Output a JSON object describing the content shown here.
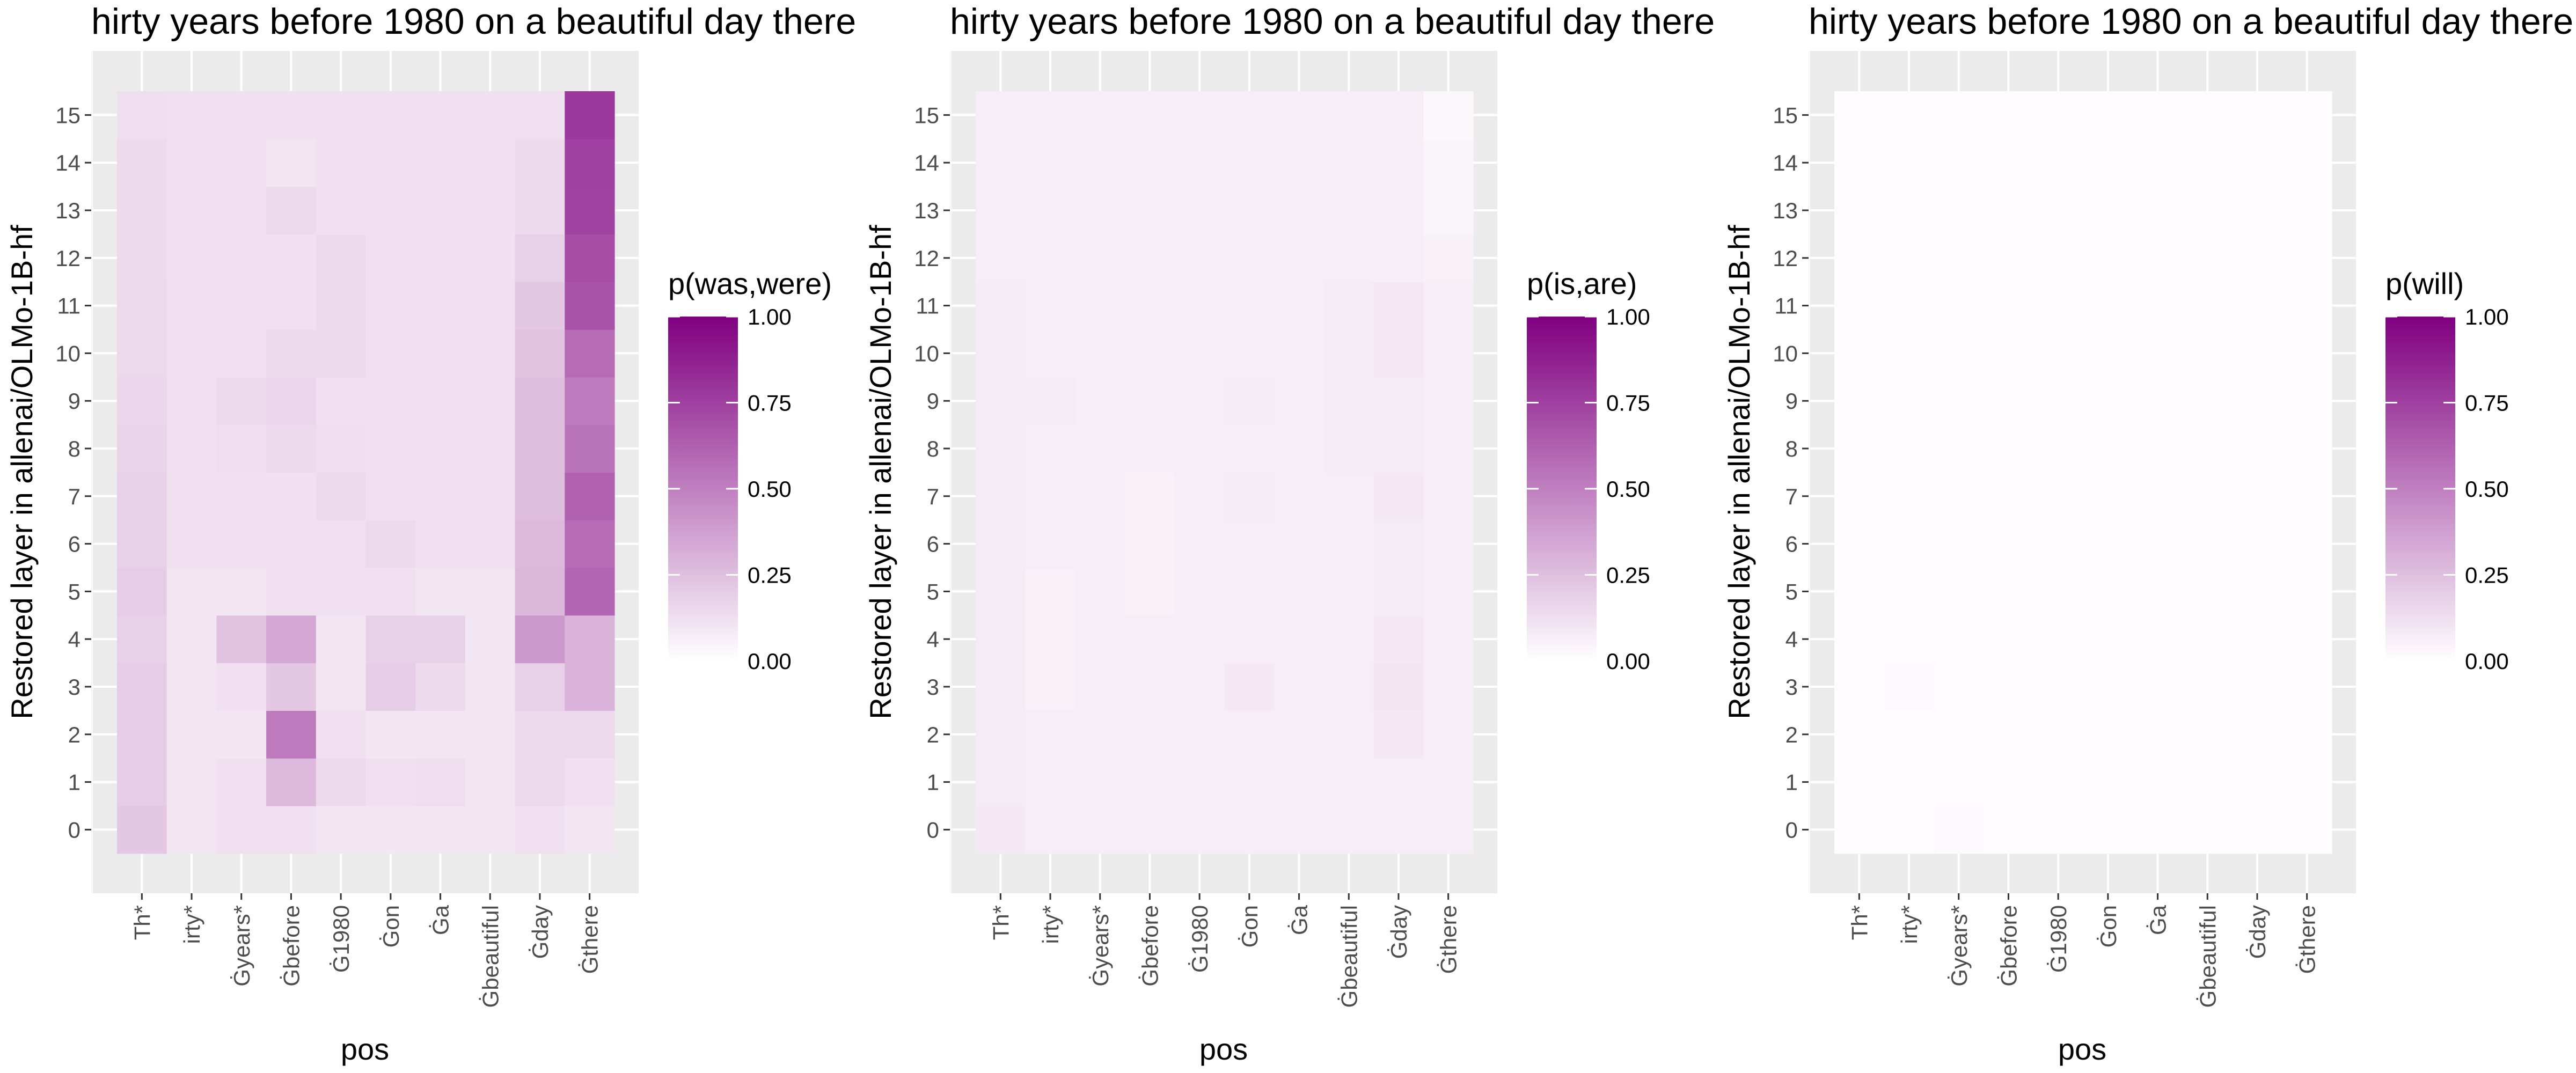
{
  "chart_data": [
    {
      "type": "heatmap",
      "title": "hirty years before 1980 on a beautiful day there",
      "xlabel": "pos",
      "ylabel": "Restored layer in allenai/OLMo-1B-hf",
      "x": [
        "Th*",
        "irty*",
        "Ġyears*",
        "Ġbefore",
        "Ġ1980",
        "Ġon",
        "Ġa",
        "Ġbeautiful",
        "Ġday",
        "Ġthere"
      ],
      "y": [
        0,
        1,
        2,
        3,
        4,
        5,
        6,
        7,
        8,
        9,
        10,
        11,
        12,
        13,
        14,
        15
      ],
      "legend": {
        "title": "p(was,were)",
        "ticks": [
          "0.00",
          "0.25",
          "0.50",
          "0.75",
          "1.00"
        ]
      },
      "grid": true,
      "colors": {
        "low": "#ffffff",
        "high": "#800080"
      },
      "values": [
        [
          0.22,
          0.1,
          0.12,
          0.12,
          0.1,
          0.1,
          0.1,
          0.1,
          0.12,
          0.1
        ],
        [
          0.2,
          0.1,
          0.12,
          0.27,
          0.14,
          0.12,
          0.13,
          0.1,
          0.15,
          0.12
        ],
        [
          0.2,
          0.1,
          0.1,
          0.52,
          0.12,
          0.1,
          0.1,
          0.1,
          0.15,
          0.15
        ],
        [
          0.2,
          0.1,
          0.12,
          0.22,
          0.1,
          0.2,
          0.14,
          0.1,
          0.18,
          0.3
        ],
        [
          0.18,
          0.1,
          0.24,
          0.34,
          0.1,
          0.18,
          0.18,
          0.1,
          0.4,
          0.3
        ],
        [
          0.2,
          0.1,
          0.1,
          0.12,
          0.12,
          0.12,
          0.1,
          0.1,
          0.28,
          0.6
        ],
        [
          0.18,
          0.12,
          0.12,
          0.12,
          0.12,
          0.14,
          0.12,
          0.12,
          0.27,
          0.58
        ],
        [
          0.18,
          0.12,
          0.12,
          0.12,
          0.14,
          0.12,
          0.12,
          0.12,
          0.26,
          0.62
        ],
        [
          0.17,
          0.12,
          0.13,
          0.15,
          0.13,
          0.12,
          0.12,
          0.12,
          0.25,
          0.55
        ],
        [
          0.16,
          0.12,
          0.14,
          0.16,
          0.12,
          0.12,
          0.12,
          0.12,
          0.25,
          0.52
        ],
        [
          0.15,
          0.12,
          0.12,
          0.14,
          0.14,
          0.12,
          0.12,
          0.12,
          0.24,
          0.58
        ],
        [
          0.15,
          0.12,
          0.12,
          0.12,
          0.14,
          0.12,
          0.12,
          0.12,
          0.22,
          0.68
        ],
        [
          0.14,
          0.12,
          0.12,
          0.12,
          0.14,
          0.12,
          0.12,
          0.12,
          0.18,
          0.7
        ],
        [
          0.14,
          0.12,
          0.12,
          0.14,
          0.12,
          0.12,
          0.12,
          0.12,
          0.14,
          0.74
        ],
        [
          0.14,
          0.12,
          0.12,
          0.1,
          0.12,
          0.12,
          0.12,
          0.12,
          0.14,
          0.75
        ],
        [
          0.13,
          0.12,
          0.12,
          0.12,
          0.12,
          0.12,
          0.12,
          0.12,
          0.12,
          0.78
        ]
      ]
    },
    {
      "type": "heatmap",
      "title": "hirty years before 1980 on a beautiful day there",
      "xlabel": "pos",
      "ylabel": "Restored layer in allenai/OLMo-1B-hf",
      "x": [
        "Th*",
        "irty*",
        "Ġyears*",
        "Ġbefore",
        "Ġ1980",
        "Ġon",
        "Ġa",
        "Ġbeautiful",
        "Ġday",
        "Ġthere"
      ],
      "y": [
        0,
        1,
        2,
        3,
        4,
        5,
        6,
        7,
        8,
        9,
        10,
        11,
        12,
        13,
        14,
        15
      ],
      "legend": {
        "title": "p(is,are)",
        "ticks": [
          "0.00",
          "0.25",
          "0.50",
          "0.75",
          "1.00"
        ]
      },
      "grid": true,
      "colors": {
        "low": "#ffffff",
        "high": "#800080"
      },
      "values": [
        [
          0.09,
          0.07,
          0.07,
          0.07,
          0.07,
          0.07,
          0.07,
          0.07,
          0.07,
          0.07
        ],
        [
          0.08,
          0.07,
          0.07,
          0.07,
          0.07,
          0.07,
          0.07,
          0.07,
          0.07,
          0.07
        ],
        [
          0.08,
          0.07,
          0.07,
          0.07,
          0.07,
          0.07,
          0.07,
          0.07,
          0.09,
          0.07
        ],
        [
          0.08,
          0.06,
          0.07,
          0.07,
          0.07,
          0.09,
          0.07,
          0.07,
          0.1,
          0.07
        ],
        [
          0.08,
          0.06,
          0.07,
          0.07,
          0.07,
          0.07,
          0.07,
          0.07,
          0.09,
          0.07
        ],
        [
          0.08,
          0.06,
          0.07,
          0.06,
          0.07,
          0.07,
          0.07,
          0.07,
          0.08,
          0.07
        ],
        [
          0.08,
          0.07,
          0.07,
          0.06,
          0.07,
          0.07,
          0.07,
          0.07,
          0.08,
          0.07
        ],
        [
          0.08,
          0.07,
          0.07,
          0.06,
          0.07,
          0.08,
          0.07,
          0.07,
          0.09,
          0.07
        ],
        [
          0.08,
          0.07,
          0.07,
          0.07,
          0.07,
          0.07,
          0.07,
          0.08,
          0.08,
          0.07
        ],
        [
          0.08,
          0.08,
          0.07,
          0.07,
          0.07,
          0.08,
          0.07,
          0.08,
          0.08,
          0.07
        ],
        [
          0.08,
          0.07,
          0.07,
          0.07,
          0.07,
          0.07,
          0.07,
          0.08,
          0.09,
          0.07
        ],
        [
          0.08,
          0.07,
          0.07,
          0.07,
          0.07,
          0.07,
          0.07,
          0.08,
          0.09,
          0.07
        ],
        [
          0.07,
          0.07,
          0.07,
          0.07,
          0.07,
          0.07,
          0.07,
          0.07,
          0.07,
          0.06
        ],
        [
          0.07,
          0.07,
          0.07,
          0.07,
          0.07,
          0.07,
          0.07,
          0.07,
          0.07,
          0.04
        ],
        [
          0.07,
          0.07,
          0.07,
          0.07,
          0.07,
          0.07,
          0.07,
          0.07,
          0.07,
          0.04
        ],
        [
          0.07,
          0.07,
          0.07,
          0.07,
          0.07,
          0.07,
          0.07,
          0.07,
          0.07,
          0.03
        ]
      ]
    },
    {
      "type": "heatmap",
      "title": "hirty years before 1980 on a beautiful day there",
      "xlabel": "pos",
      "ylabel": "Restored layer in allenai/OLMo-1B-hf",
      "x": [
        "Th*",
        "irty*",
        "Ġyears*",
        "Ġbefore",
        "Ġ1980",
        "Ġon",
        "Ġa",
        "Ġbeautiful",
        "Ġday",
        "Ġthere"
      ],
      "y": [
        0,
        1,
        2,
        3,
        4,
        5,
        6,
        7,
        8,
        9,
        10,
        11,
        12,
        13,
        14,
        15
      ],
      "legend": {
        "title": "p(will)",
        "ticks": [
          "0.00",
          "0.25",
          "0.50",
          "0.75",
          "1.00"
        ]
      },
      "grid": true,
      "colors": {
        "low": "#ffffff",
        "high": "#800080"
      },
      "values": [
        [
          0.01,
          0.01,
          0.02,
          0.01,
          0.01,
          0.01,
          0.01,
          0.01,
          0.01,
          0.01
        ],
        [
          0.01,
          0.01,
          0.01,
          0.01,
          0.01,
          0.01,
          0.01,
          0.01,
          0.01,
          0.01
        ],
        [
          0.01,
          0.01,
          0.01,
          0.01,
          0.01,
          0.01,
          0.01,
          0.01,
          0.01,
          0.01
        ],
        [
          0.01,
          0.02,
          0.01,
          0.01,
          0.01,
          0.01,
          0.01,
          0.01,
          0.01,
          0.01
        ],
        [
          0.01,
          0.01,
          0.01,
          0.01,
          0.01,
          0.01,
          0.01,
          0.01,
          0.01,
          0.01
        ],
        [
          0.01,
          0.01,
          0.01,
          0.01,
          0.01,
          0.01,
          0.01,
          0.01,
          0.01,
          0.01
        ],
        [
          0.01,
          0.01,
          0.01,
          0.01,
          0.01,
          0.01,
          0.01,
          0.01,
          0.01,
          0.01
        ],
        [
          0.01,
          0.01,
          0.01,
          0.01,
          0.01,
          0.01,
          0.01,
          0.01,
          0.01,
          0.01
        ],
        [
          0.01,
          0.01,
          0.01,
          0.01,
          0.01,
          0.01,
          0.01,
          0.01,
          0.01,
          0.01
        ],
        [
          0.01,
          0.01,
          0.01,
          0.01,
          0.01,
          0.01,
          0.01,
          0.01,
          0.01,
          0.01
        ],
        [
          0.01,
          0.01,
          0.01,
          0.01,
          0.01,
          0.01,
          0.01,
          0.01,
          0.01,
          0.01
        ],
        [
          0.01,
          0.01,
          0.01,
          0.01,
          0.01,
          0.01,
          0.01,
          0.01,
          0.01,
          0.01
        ],
        [
          0.01,
          0.01,
          0.01,
          0.01,
          0.01,
          0.01,
          0.01,
          0.01,
          0.01,
          0.01
        ],
        [
          0.01,
          0.01,
          0.01,
          0.01,
          0.01,
          0.01,
          0.01,
          0.01,
          0.01,
          0.01
        ],
        [
          0.01,
          0.01,
          0.01,
          0.01,
          0.01,
          0.01,
          0.01,
          0.01,
          0.01,
          0.01
        ],
        [
          0.01,
          0.01,
          0.01,
          0.01,
          0.01,
          0.01,
          0.01,
          0.01,
          0.01,
          0.01
        ]
      ]
    }
  ]
}
